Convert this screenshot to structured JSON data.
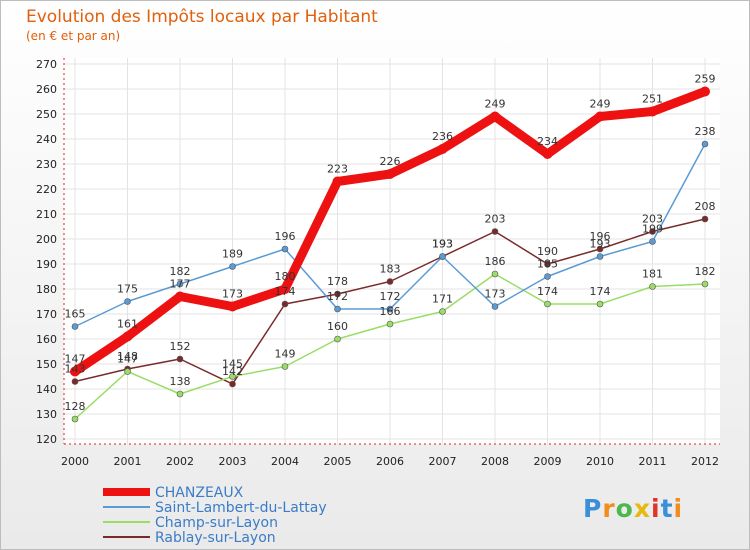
{
  "chart_data": {
    "type": "line",
    "title": "Evolution des Impôts locaux par Habitant",
    "subtitle": "(en € et par an)",
    "categories": [
      "2000",
      "2001",
      "2002",
      "2003",
      "2004",
      "2005",
      "2006",
      "2007",
      "2008",
      "2009",
      "2010",
      "2011",
      "2012"
    ],
    "ylim": [
      120,
      270
    ],
    "yticks": [
      120,
      130,
      140,
      150,
      160,
      170,
      180,
      190,
      200,
      210,
      220,
      230,
      240,
      250,
      260,
      270
    ],
    "grid": true,
    "series": [
      {
        "name": "CHANZEAUX",
        "color": "#ee1111",
        "values": [
          147,
          161,
          177,
          173,
          180,
          223,
          226,
          236,
          249,
          234,
          249,
          251,
          259
        ]
      },
      {
        "name": "Saint-Lambert-du-Lattay",
        "color": "#5b9bd5",
        "values": [
          165,
          175,
          182,
          189,
          196,
          172,
          172,
          193,
          173,
          185,
          193,
          199,
          238
        ]
      },
      {
        "name": "Champ-sur-Layon",
        "color": "#99dd66",
        "values": [
          128,
          147,
          138,
          145,
          149,
          160,
          166,
          171,
          186,
          174,
          174,
          181,
          182
        ]
      },
      {
        "name": "Rablay-sur-Layon",
        "color": "#7a2a2a",
        "values": [
          143,
          148,
          152,
          142,
          174,
          178,
          183,
          193,
          203,
          190,
          196,
          203,
          208
        ]
      }
    ]
  },
  "branding": {
    "logo_text": "Proxiti"
  }
}
